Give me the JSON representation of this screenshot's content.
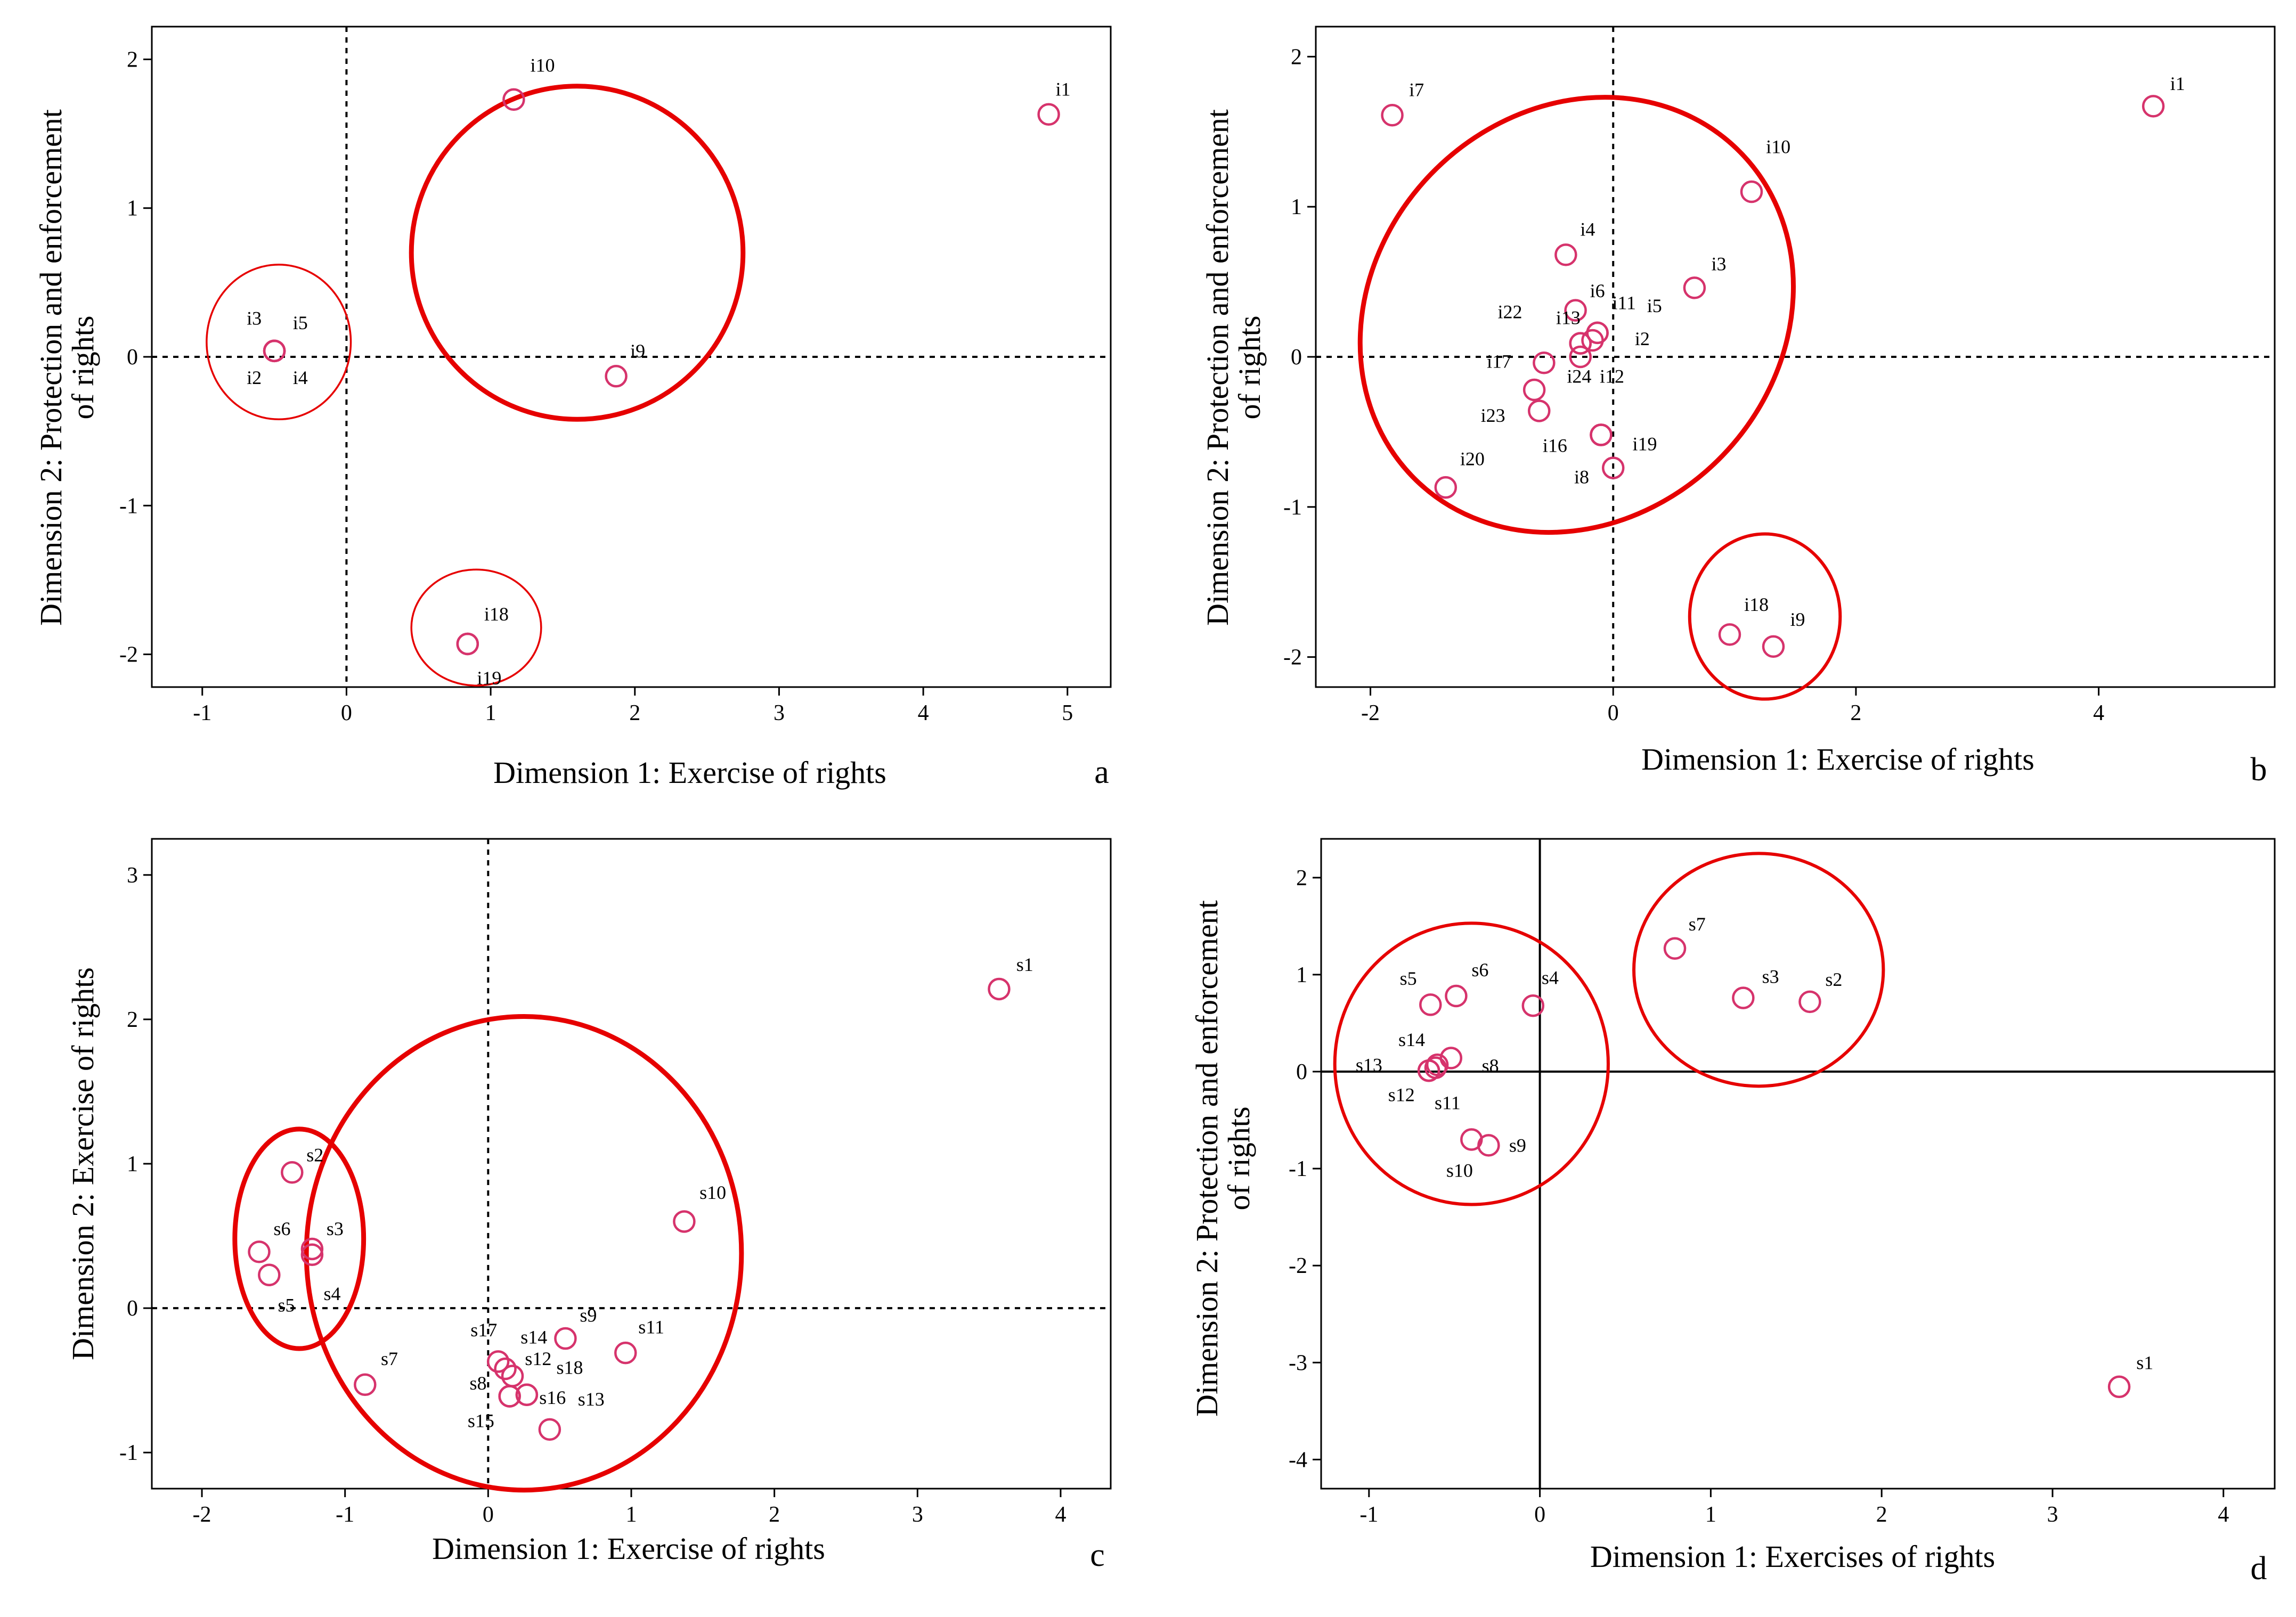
{
  "figure": {
    "colors": {
      "point": "#d6336c",
      "cluster": "#e60000",
      "axis": "#000000"
    }
  },
  "chart_data": [
    {
      "panel": "a",
      "type": "scatter",
      "xlabel": "Dimension 1: Exercise of rights",
      "ylabel_lines": [
        "Dimension 2: Protection and enforcement",
        "of rights"
      ],
      "xlim": [
        -1.35,
        5.3
      ],
      "ylim": [
        -2.22,
        2.22
      ],
      "xticks": [
        -1,
        0,
        1,
        2,
        3,
        4,
        5
      ],
      "yticks": [
        -2,
        -1,
        0,
        1,
        2
      ],
      "reference_lines": "dashed",
      "points": [
        {
          "label": "i1",
          "x": 4.87,
          "y": 1.63,
          "lx": 0.1,
          "ly": 0.17
        },
        {
          "label": "i10",
          "x": 1.16,
          "y": 1.73,
          "lx": 0.2,
          "ly": 0.23
        },
        {
          "label": "i9",
          "x": 1.87,
          "y": -0.13,
          "lx": 0.15,
          "ly": 0.17
        },
        {
          "label": "i3",
          "x": -0.5,
          "y": 0.04,
          "lx": -0.14,
          "ly": 0.22
        },
        {
          "label": "i5",
          "x": -0.5,
          "y": 0.04,
          "lx": 0.18,
          "ly": 0.19
        },
        {
          "label": "i2",
          "x": -0.5,
          "y": 0.04,
          "lx": -0.14,
          "ly": -0.18
        },
        {
          "label": "i4",
          "x": -0.5,
          "y": 0.04,
          "lx": 0.18,
          "ly": -0.18
        },
        {
          "label": "i18",
          "x": 0.84,
          "y": -1.93,
          "lx": 0.2,
          "ly": 0.2
        },
        {
          "label": "i19",
          "x": 0.84,
          "y": -1.93,
          "lx": 0.15,
          "ly": -0.23
        }
      ],
      "clusters": [
        {
          "cx": 1.6,
          "cy": 0.7,
          "rx": 1.15,
          "ry": 1.12,
          "weight": "thick"
        },
        {
          "cx": -0.47,
          "cy": 0.1,
          "rx": 0.5,
          "ry": 0.52,
          "weight": "thin"
        },
        {
          "cx": 0.9,
          "cy": -1.82,
          "rx": 0.45,
          "ry": 0.39,
          "weight": "thin"
        }
      ]
    },
    {
      "panel": "b",
      "type": "scatter",
      "xlabel": "Dimension 1: Exercise of rights",
      "ylabel_lines": [
        "Dimension 2: Protection and enforcement",
        "of rights"
      ],
      "xlim": [
        -2.45,
        5.45
      ],
      "ylim": [
        -2.2,
        2.2
      ],
      "xticks": [
        -2,
        0,
        2,
        4
      ],
      "yticks": [
        -2,
        -1,
        0,
        1,
        2
      ],
      "reference_lines": "dashed",
      "points": [
        {
          "label": "i7",
          "x": -1.82,
          "y": 1.61,
          "lx": 0.2,
          "ly": 0.17
        },
        {
          "label": "i1",
          "x": 4.45,
          "y": 1.67,
          "lx": 0.2,
          "ly": 0.15
        },
        {
          "label": "i10",
          "x": 1.14,
          "y": 1.1,
          "lx": 0.22,
          "ly": 0.3
        },
        {
          "label": "i4",
          "x": -0.39,
          "y": 0.68,
          "lx": 0.18,
          "ly": 0.17
        },
        {
          "label": "i3",
          "x": 0.67,
          "y": 0.46,
          "lx": 0.2,
          "ly": 0.16
        },
        {
          "label": "i6",
          "x": -0.31,
          "y": 0.31,
          "lx": 0.18,
          "ly": 0.13
        },
        {
          "label": "i11",
          "x": -0.13,
          "y": 0.16,
          "lx": 0.22,
          "ly": 0.2
        },
        {
          "label": "i5",
          "x": -0.13,
          "y": 0.16,
          "lx": 0.47,
          "ly": 0.18
        },
        {
          "label": "i22",
          "x": -0.27,
          "y": 0.09,
          "lx": -0.58,
          "ly": 0.21
        },
        {
          "label": "i13",
          "x": -0.27,
          "y": 0.09,
          "lx": -0.1,
          "ly": 0.17
        },
        {
          "label": "i2",
          "x": -0.17,
          "y": 0.11,
          "lx": 0.41,
          "ly": 0.01
        },
        {
          "label": "i17",
          "x": -0.57,
          "y": -0.04,
          "lx": -0.37,
          "ly": 0.01
        },
        {
          "label": "i24",
          "x": -0.65,
          "y": -0.22,
          "lx": 0.37,
          "ly": 0.09
        },
        {
          "label": "i12",
          "x": -0.27,
          "y": 0.0,
          "lx": 0.26,
          "ly": -0.13
        },
        {
          "label": "i23",
          "x": -0.61,
          "y": -0.36,
          "lx": -0.38,
          "ly": -0.03
        },
        {
          "label": "i16",
          "x": -0.1,
          "y": -0.52,
          "lx": -0.38,
          "ly": -0.07
        },
        {
          "label": "i19",
          "x": -0.1,
          "y": -0.52,
          "lx": 0.36,
          "ly": -0.06
        },
        {
          "label": "i8",
          "x": 0.0,
          "y": -0.74,
          "lx": -0.26,
          "ly": -0.06
        },
        {
          "label": "i20",
          "x": -1.38,
          "y": -0.87,
          "lx": 0.22,
          "ly": 0.19
        },
        {
          "label": "i18",
          "x": 0.96,
          "y": -1.85,
          "lx": 0.22,
          "ly": 0.2
        },
        {
          "label": "i9",
          "x": 1.32,
          "y": -1.93,
          "lx": 0.2,
          "ly": 0.18
        }
      ],
      "clusters": [
        {
          "cx": -0.3,
          "cy": 0.28,
          "rx": 1.9,
          "ry": 1.35,
          "rotate_deg": 46,
          "weight": "thick"
        },
        {
          "cx": 1.25,
          "cy": -1.73,
          "rx": 0.62,
          "ry": 0.55,
          "weight": "medium"
        }
      ]
    },
    {
      "panel": "c",
      "type": "scatter",
      "xlabel": "Dimension 1:  Exercise of rights",
      "ylabel_lines": [
        "Dimension 2: Exercise of rights"
      ],
      "xlim": [
        -2.35,
        4.35
      ],
      "ylim": [
        -1.25,
        3.25
      ],
      "xticks": [
        -2,
        -1,
        0,
        1,
        2,
        3,
        4
      ],
      "yticks": [
        -1,
        0,
        1,
        2,
        3
      ],
      "reference_lines": "dashed",
      "points": [
        {
          "label": "s1",
          "x": 3.57,
          "y": 2.21,
          "lx": 0.18,
          "ly": 0.17
        },
        {
          "label": "s2",
          "x": -1.37,
          "y": 0.94,
          "lx": 0.16,
          "ly": 0.12
        },
        {
          "label": "s6",
          "x": -1.6,
          "y": 0.39,
          "lx": 0.16,
          "ly": 0.16
        },
        {
          "label": "s3",
          "x": -1.23,
          "y": 0.41,
          "lx": 0.16,
          "ly": 0.14
        },
        {
          "label": "s5",
          "x": -1.53,
          "y": 0.23,
          "lx": 0.12,
          "ly": -0.21
        },
        {
          "label": "s4",
          "x": -1.23,
          "y": 0.37,
          "lx": 0.14,
          "ly": -0.27
        },
        {
          "label": "s7",
          "x": -0.86,
          "y": -0.53,
          "lx": 0.17,
          "ly": 0.18
        },
        {
          "label": "s10",
          "x": 1.37,
          "y": 0.6,
          "lx": 0.2,
          "ly": 0.2
        },
        {
          "label": "s17",
          "x": 0.07,
          "y": -0.37,
          "lx": -0.1,
          "ly": 0.22
        },
        {
          "label": "s14",
          "x": 0.12,
          "y": -0.42,
          "lx": 0.2,
          "ly": 0.22
        },
        {
          "label": "s9",
          "x": 0.54,
          "y": -0.21,
          "lx": 0.16,
          "ly": 0.16
        },
        {
          "label": "s12",
          "x": 0.17,
          "y": -0.47,
          "lx": 0.18,
          "ly": 0.12
        },
        {
          "label": "s11",
          "x": 0.96,
          "y": -0.31,
          "lx": 0.18,
          "ly": 0.18
        },
        {
          "label": "s18",
          "x": 0.27,
          "y": -0.6,
          "lx": 0.3,
          "ly": 0.19
        },
        {
          "label": "s8",
          "x": 0.15,
          "y": -0.61,
          "lx": -0.22,
          "ly": 0.09
        },
        {
          "label": "s16",
          "x": 0.27,
          "y": -0.6,
          "lx": 0.18,
          "ly": -0.02
        },
        {
          "label": "s13",
          "x": 0.43,
          "y": -0.84,
          "lx": 0.29,
          "ly": 0.21
        },
        {
          "label": "s15",
          "x": 0.15,
          "y": -0.61,
          "lx": -0.2,
          "ly": -0.17
        }
      ],
      "clusters": [
        {
          "cx": 0.25,
          "cy": 0.38,
          "rx": 1.52,
          "ry": 1.64,
          "weight": "thick"
        },
        {
          "cx": -1.32,
          "cy": 0.48,
          "rx": 0.45,
          "ry": 0.76,
          "weight": "thick"
        }
      ]
    },
    {
      "panel": "d",
      "type": "scatter",
      "xlabel": "Dimension 1:  Exercises of rights",
      "ylabel_lines": [
        "Dimension 2: Protection and enforcement",
        "of rights"
      ],
      "xlim": [
        -1.28,
        4.3
      ],
      "ylim": [
        -4.3,
        2.4
      ],
      "xticks": [
        -1,
        0,
        1,
        2,
        3,
        4
      ],
      "yticks": [
        -4,
        -3,
        -2,
        -1,
        0,
        1,
        2
      ],
      "reference_lines": "solid",
      "points": [
        {
          "label": "s7",
          "x": 0.79,
          "y": 1.27,
          "lx": 0.13,
          "ly": 0.25
        },
        {
          "label": "s3",
          "x": 1.19,
          "y": 0.76,
          "lx": 0.16,
          "ly": 0.22
        },
        {
          "label": "s2",
          "x": 1.58,
          "y": 0.72,
          "lx": 0.14,
          "ly": 0.23
        },
        {
          "label": "s5",
          "x": -0.64,
          "y": 0.69,
          "lx": -0.13,
          "ly": 0.27
        },
        {
          "label": "s6",
          "x": -0.49,
          "y": 0.78,
          "lx": 0.14,
          "ly": 0.27
        },
        {
          "label": "s4",
          "x": -0.04,
          "y": 0.68,
          "lx": 0.1,
          "ly": 0.29
        },
        {
          "label": "s14",
          "x": -0.6,
          "y": 0.07,
          "lx": -0.15,
          "ly": 0.26
        },
        {
          "label": "s13",
          "x": -0.65,
          "y": 0.01,
          "lx": -0.35,
          "ly": 0.06
        },
        {
          "label": "s12",
          "x": -0.65,
          "y": 0.01,
          "lx": -0.16,
          "ly": -0.25
        },
        {
          "label": "s11",
          "x": -0.61,
          "y": 0.04,
          "lx": 0.07,
          "ly": -0.36
        },
        {
          "label": "s8",
          "x": -0.52,
          "y": 0.14,
          "lx": 0.23,
          "ly": -0.08
        },
        {
          "label": "s9",
          "x": -0.3,
          "y": -0.76,
          "lx": 0.17,
          "ly": 0.0
        },
        {
          "label": "s10",
          "x": -0.4,
          "y": -0.7,
          "lx": -0.07,
          "ly": -0.32
        },
        {
          "label": "s1",
          "x": 3.39,
          "y": -3.25,
          "lx": 0.15,
          "ly": 0.25
        }
      ],
      "clusters": [
        {
          "cx": -0.4,
          "cy": 0.08,
          "rx": 0.8,
          "ry": 1.45,
          "weight": "medium"
        },
        {
          "cx": 1.28,
          "cy": 1.05,
          "rx": 0.73,
          "ry": 1.2,
          "weight": "medium"
        }
      ]
    }
  ]
}
